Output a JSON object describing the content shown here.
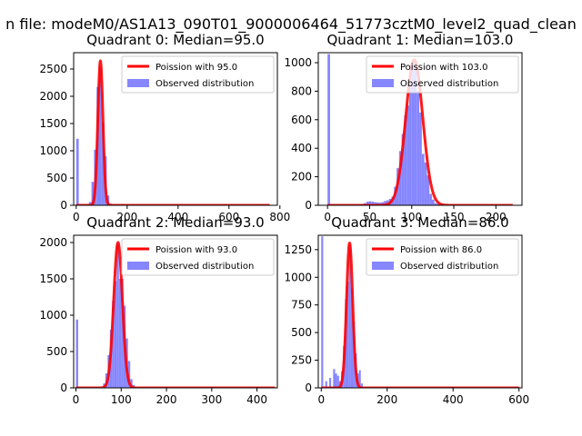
{
  "figure": {
    "suptitle": "n file: modeM0/AS1A13_090T01_9000006464_51773cztM0_level2_quad_clean"
  },
  "chart_data": [
    {
      "type": "bar",
      "title": "Quadrant 0: Median=95.0",
      "xlim": [
        -10,
        790
      ],
      "ylim": [
        0,
        2800
      ],
      "xticks": [
        0,
        200,
        400,
        600,
        800
      ],
      "yticks": [
        0,
        500,
        1000,
        1500,
        2000,
        2500
      ],
      "grid": false,
      "legend_position": "top-right",
      "legend": [
        "Poission with 95.0",
        "Observed distribution"
      ],
      "histogram": {
        "name": "Observed distribution",
        "color": "#7f7fff",
        "bin_width": 10,
        "bins": [
          [
            0,
            1220
          ],
          [
            50,
            60
          ],
          [
            60,
            430
          ],
          [
            70,
            1020
          ],
          [
            80,
            2170
          ],
          [
            90,
            2550
          ],
          [
            100,
            1520
          ],
          [
            110,
            900
          ],
          [
            120,
            180
          ],
          [
            130,
            30
          ]
        ]
      },
      "curve": {
        "name": "Poission with 95.0",
        "color": "#ff0000",
        "mean": 95.0,
        "peak": 2650,
        "sigma": 10,
        "x_range": [
          0,
          760
        ]
      }
    },
    {
      "type": "bar",
      "title": "Quadrant 1: Median=103.0",
      "xlim": [
        -11,
        231
      ],
      "ylim": [
        0,
        1070
      ],
      "xticks": [
        0,
        50,
        100,
        150,
        200
      ],
      "yticks": [
        0,
        200,
        400,
        600,
        800,
        1000
      ],
      "grid": false,
      "legend_position": "top-right",
      "legend": [
        "Poission with 103.0",
        "Observed distribution"
      ],
      "histogram": {
        "name": "Observed distribution",
        "color": "#7f7fff",
        "bin_width": 3,
        "bins": [
          [
            0,
            1060
          ],
          [
            40,
            10
          ],
          [
            43,
            15
          ],
          [
            46,
            25
          ],
          [
            49,
            28
          ],
          [
            52,
            25
          ],
          [
            55,
            22
          ],
          [
            58,
            20
          ],
          [
            61,
            18
          ],
          [
            64,
            22
          ],
          [
            67,
            30
          ],
          [
            70,
            35
          ],
          [
            73,
            45
          ],
          [
            76,
            60
          ],
          [
            79,
            130
          ],
          [
            82,
            260
          ],
          [
            85,
            380
          ],
          [
            88,
            500
          ],
          [
            91,
            630
          ],
          [
            94,
            700
          ],
          [
            97,
            850
          ],
          [
            100,
            990
          ],
          [
            103,
            1000
          ],
          [
            106,
            800
          ],
          [
            109,
            650
          ],
          [
            112,
            360
          ],
          [
            115,
            300
          ],
          [
            118,
            210
          ],
          [
            121,
            80
          ],
          [
            124,
            40
          ],
          [
            127,
            15
          ],
          [
            130,
            8
          ]
        ]
      },
      "curve": {
        "name": "Poission with 103.0",
        "color": "#ff0000",
        "mean": 103.0,
        "peak": 1020,
        "sigma": 10.1,
        "x_range": [
          0,
          220
        ]
      }
    },
    {
      "type": "bar",
      "title": "Quadrant 2: Median=93.0",
      "xlim": [
        -5,
        445
      ],
      "ylim": [
        0,
        2100
      ],
      "xticks": [
        0,
        100,
        200,
        300,
        400
      ],
      "yticks": [
        0,
        500,
        1000,
        1500,
        2000
      ],
      "grid": false,
      "legend_position": "top-right",
      "legend": [
        "Poission with 93.0",
        "Observed distribution"
      ],
      "histogram": {
        "name": "Observed distribution",
        "color": "#7f7fff",
        "bin_width": 5,
        "bins": [
          [
            0,
            940
          ],
          [
            60,
            60
          ],
          [
            65,
            200
          ],
          [
            70,
            450
          ],
          [
            75,
            800
          ],
          [
            80,
            1200
          ],
          [
            85,
            1470
          ],
          [
            90,
            1980
          ],
          [
            95,
            1500
          ],
          [
            100,
            1500
          ],
          [
            105,
            1130
          ],
          [
            110,
            680
          ],
          [
            115,
            370
          ],
          [
            120,
            120
          ],
          [
            125,
            40
          ]
        ]
      },
      "curve": {
        "name": "Poission with 93.0",
        "color": "#ff0000",
        "mean": 93.0,
        "peak": 2000,
        "sigma": 9.6,
        "x_range": [
          0,
          440
        ]
      }
    },
    {
      "type": "bar",
      "title": "Quadrant 3: Median=86.0",
      "xlim": [
        -9,
        609
      ],
      "ylim": [
        0,
        1380
      ],
      "xticks": [
        0,
        200,
        400,
        600
      ],
      "yticks": [
        0,
        250,
        500,
        750,
        1000,
        1250
      ],
      "grid": false,
      "legend_position": "top-right",
      "legend": [
        "Poission with 86.0",
        "Observed distribution"
      ],
      "histogram": {
        "name": "Observed distribution",
        "color": "#7f7fff",
        "bin_width": 6,
        "bins": [
          [
            0,
            1370
          ],
          [
            12,
            60
          ],
          [
            24,
            90
          ],
          [
            36,
            170
          ],
          [
            42,
            130
          ],
          [
            48,
            110
          ],
          [
            54,
            60
          ],
          [
            60,
            150
          ],
          [
            66,
            380
          ],
          [
            72,
            800
          ],
          [
            78,
            960
          ],
          [
            84,
            1280
          ],
          [
            90,
            900
          ],
          [
            96,
            600
          ],
          [
            102,
            310
          ],
          [
            108,
            130
          ],
          [
            114,
            160
          ],
          [
            120,
            40
          ]
        ]
      },
      "curve": {
        "name": "Poission with 86.0",
        "color": "#ff0000",
        "mean": 86.0,
        "peak": 1310,
        "sigma": 9.3,
        "x_range": [
          0,
          600
        ]
      }
    }
  ]
}
